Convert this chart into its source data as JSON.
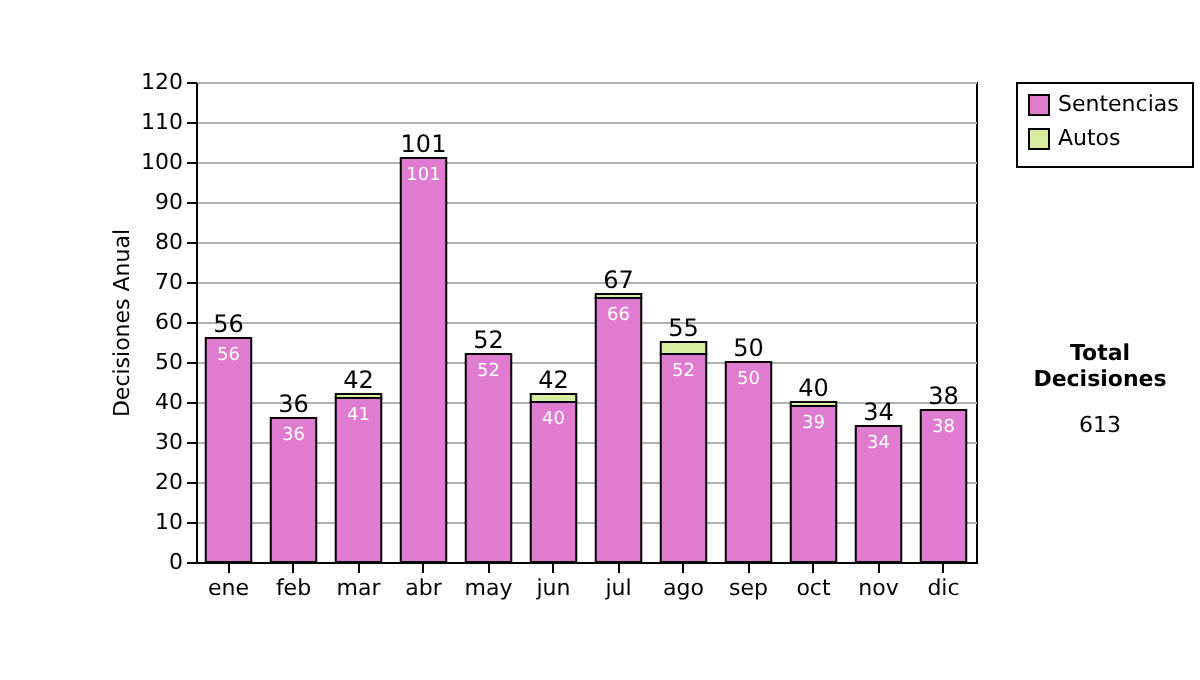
{
  "chart_data": {
    "type": "bar",
    "stacked": true,
    "ylabel": "Decisiones Anual",
    "categories": [
      "ene",
      "feb",
      "mar",
      "abr",
      "may",
      "jun",
      "jul",
      "ago",
      "sep",
      "oct",
      "nov",
      "dic"
    ],
    "series": [
      {
        "name": "Sentencias",
        "color": "#e07cd0",
        "values": [
          56,
          36,
          41,
          101,
          52,
          40,
          66,
          52,
          50,
          39,
          34,
          38
        ],
        "value_labels": [
          "56",
          "36",
          "41",
          "101",
          "52",
          "40",
          "66",
          "52",
          "50",
          "39",
          "34",
          "38"
        ]
      },
      {
        "name": "Autos",
        "color": "#d8eca0",
        "values": [
          null,
          null,
          1,
          null,
          null,
          2,
          1,
          3,
          null,
          1,
          null,
          null
        ]
      }
    ],
    "totals": [
      "56",
      "36",
      "42",
      "101",
      "52",
      "42",
      "67",
      "55",
      "50",
      "40",
      "34",
      "38"
    ],
    "ylim": [
      0,
      120
    ],
    "yticks": [
      0,
      10,
      20,
      30,
      40,
      50,
      60,
      70,
      80,
      90,
      100,
      110,
      120
    ],
    "grid": "y",
    "legend": "right",
    "annotations": [
      "Total Decisiones",
      "613"
    ]
  }
}
